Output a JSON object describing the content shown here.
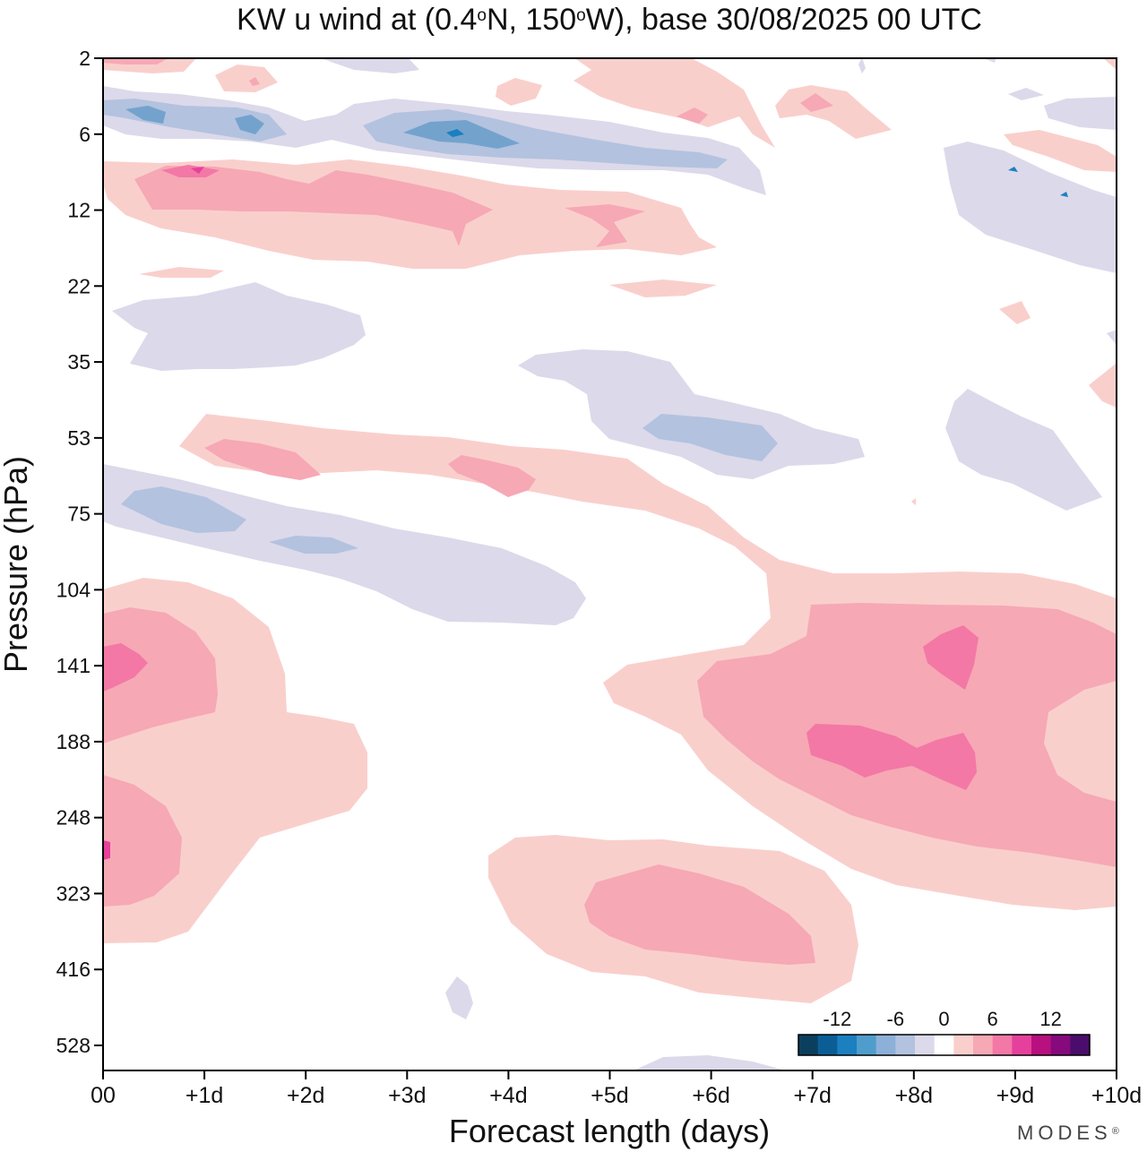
{
  "chart_data": {
    "type": "heatmap",
    "subtype": "filled-contour",
    "title": {
      "prefix": "KW u wind at (0.4",
      "deg1": "o",
      "mid": "N, 150",
      "deg2": "o",
      "suffix": "W),  base 30/08/2025  00 UTC"
    },
    "xlabel": "Forecast length (days)",
    "ylabel": "Pressure (hPa)",
    "x_range_days": [
      0,
      10
    ],
    "x_ticks": [
      {
        "day": 0,
        "label": "00"
      },
      {
        "day": 1,
        "label": "+1d"
      },
      {
        "day": 2,
        "label": "+2d"
      },
      {
        "day": 3,
        "label": "+3d"
      },
      {
        "day": 4,
        "label": "+4d"
      },
      {
        "day": 5,
        "label": "+5d"
      },
      {
        "day": 6,
        "label": "+6d"
      },
      {
        "day": 7,
        "label": "+7d"
      },
      {
        "day": 8,
        "label": "+8d"
      },
      {
        "day": 9,
        "label": "+9d"
      },
      {
        "day": 10,
        "label": "+10d"
      }
    ],
    "y_scale": "log",
    "y_ticks": [
      "2",
      "6",
      "12",
      "22",
      "35",
      "53",
      "75",
      "104",
      "141",
      "188",
      "248",
      "323",
      "416",
      "528"
    ],
    "colorbar": {
      "colors": [
        "#0c3f5e",
        "#0a5e95",
        "#1b7fc0",
        "#4f9dcc",
        "#8db0d9",
        "#b3c2df",
        "#dcd9ea",
        "#ffffff",
        "#f9cfcc",
        "#f6a8b5",
        "#f378a5",
        "#e6409d",
        "#b8107f",
        "#860a7c",
        "#4b0d6b"
      ],
      "tick_labels": [
        {
          "label": "-12",
          "boundary": 2
        },
        {
          "label": "-6",
          "boundary": 5
        },
        {
          "label": "0",
          "boundary": 7.5
        },
        {
          "label": "6",
          "boundary": 10
        },
        {
          "label": "12",
          "boundary": 13
        }
      ]
    },
    "contour_levels": [
      {
        "name": "neg-1",
        "value_range": "-3 to 0",
        "color": "#dcd9ea"
      },
      {
        "name": "neg-2",
        "value_range": "-6 to -3",
        "color": "#b3c2df"
      },
      {
        "name": "neg-3",
        "value_range": "-9 to -6",
        "color": "#73a3cd"
      },
      {
        "name": "neg-4",
        "value_range": "-12 to -9",
        "color": "#1b7fc0"
      },
      {
        "name": "pos-1",
        "value_range": "0 to 3",
        "color": "#f9cfcc"
      },
      {
        "name": "pos-2",
        "value_range": "3 to 6",
        "color": "#f6a8b5"
      },
      {
        "name": "pos-3",
        "value_range": "6 to 9",
        "color": "#f378a5"
      },
      {
        "name": "pos-4",
        "value_range": "9 to 12",
        "color": "#e6409d"
      }
    ]
  },
  "brand": "MODES",
  "brand_mark": "®"
}
